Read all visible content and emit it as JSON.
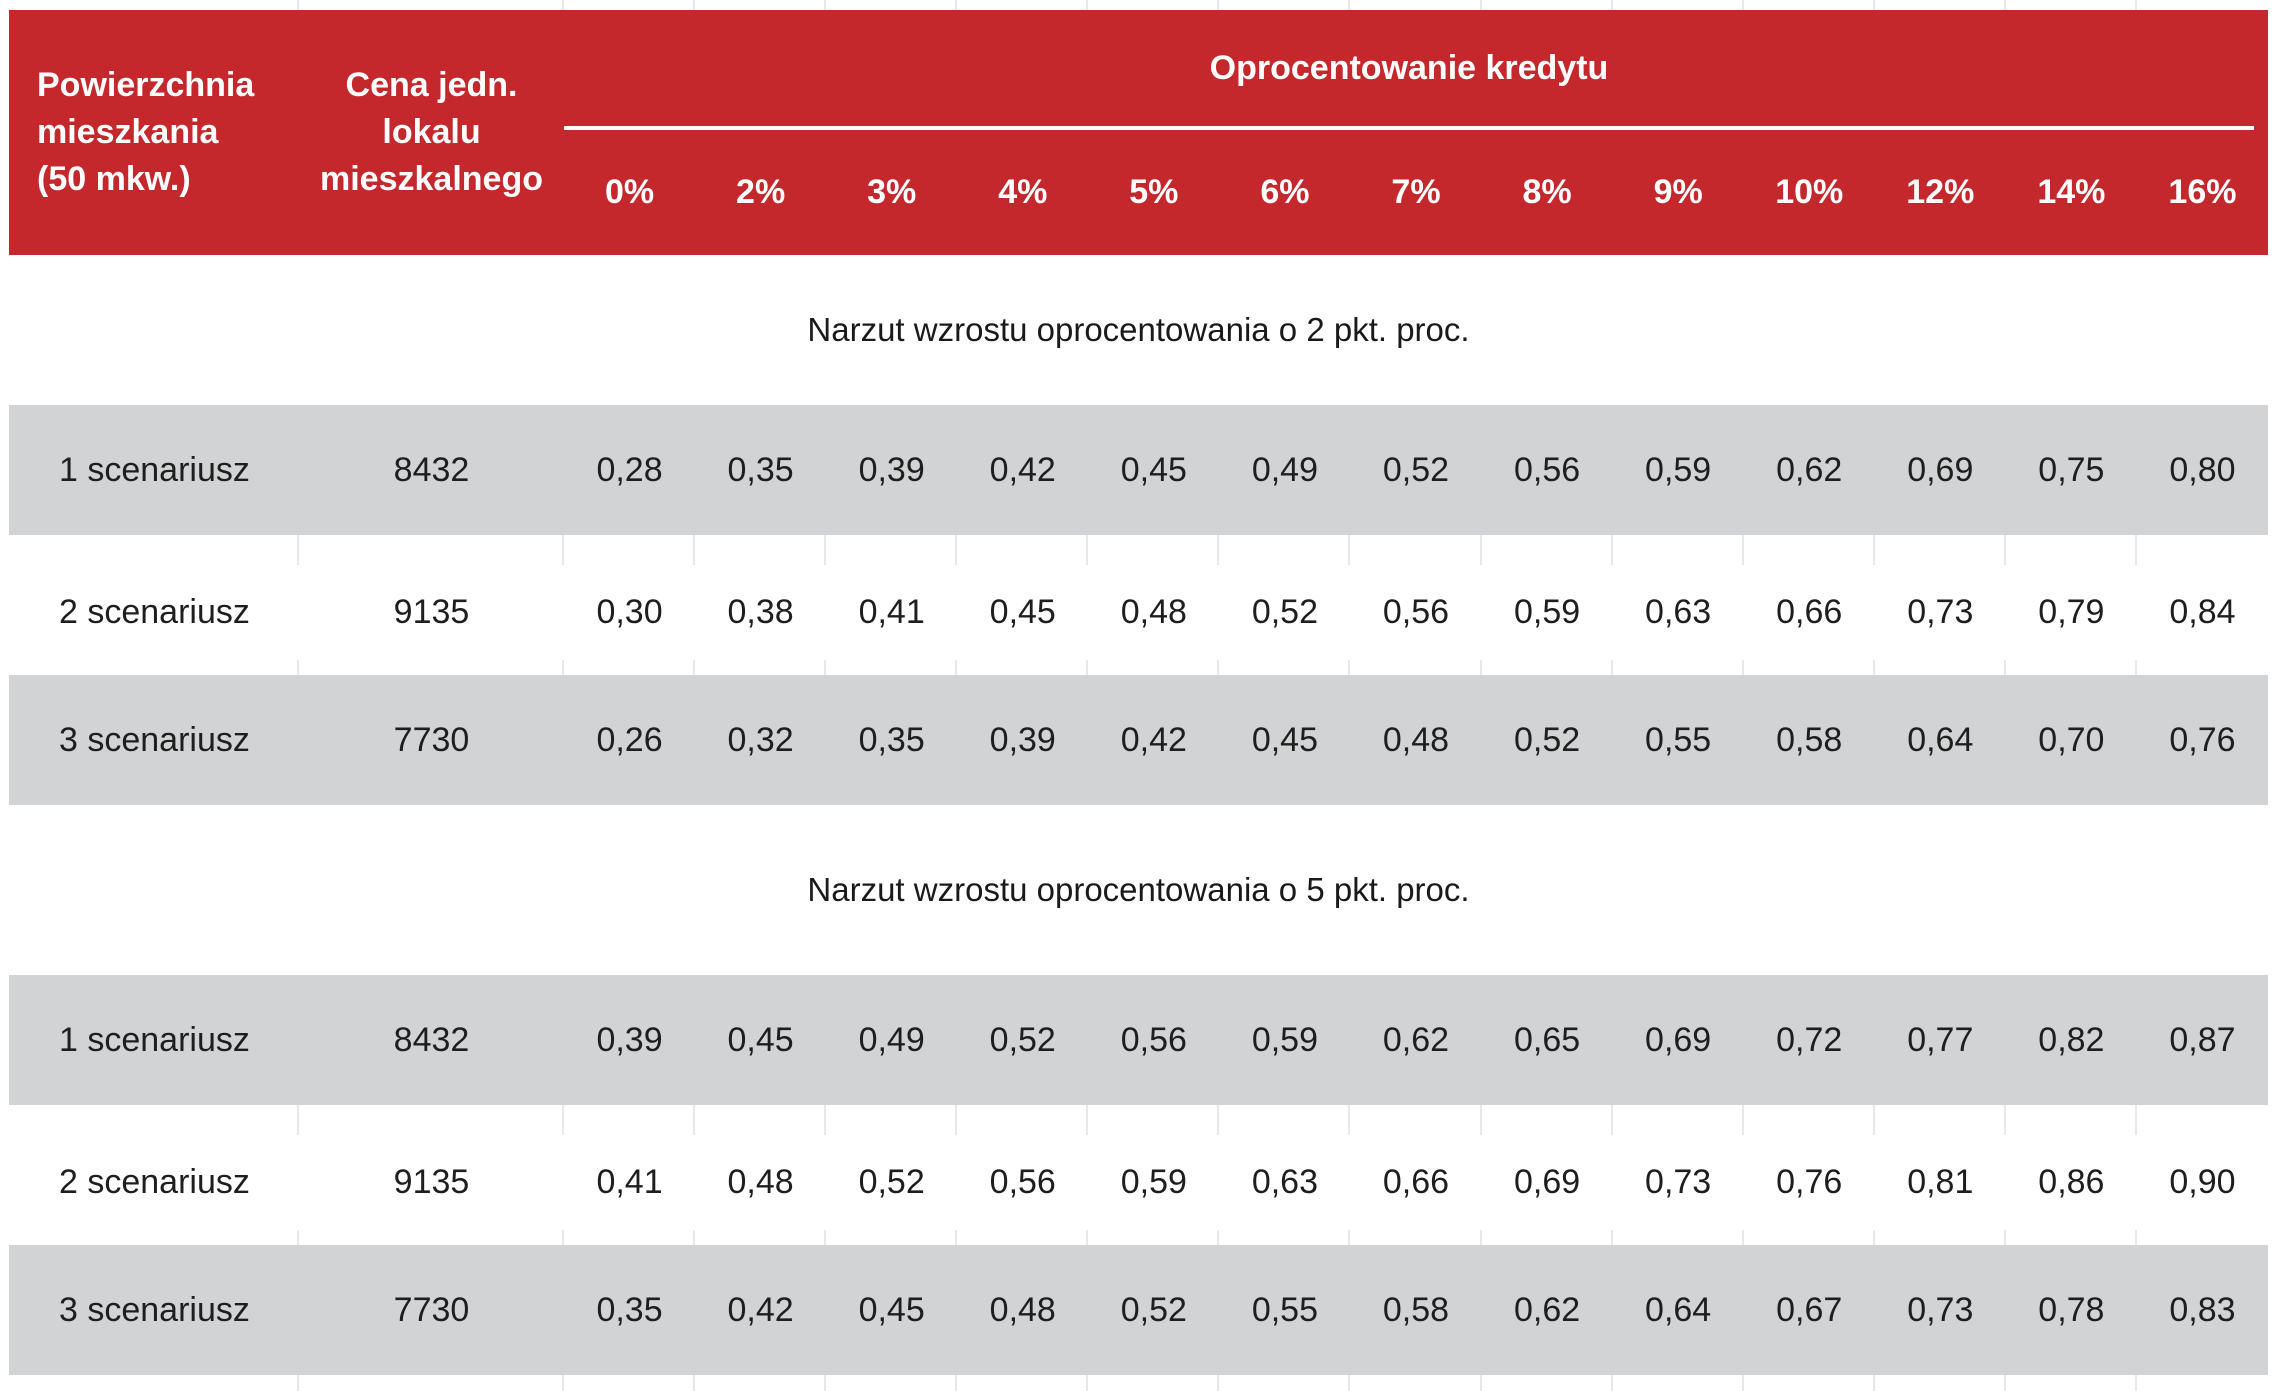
{
  "chart_data": {
    "type": "table",
    "header": {
      "col1_label": "Powierzchnia mieszkania (50 mkw.)",
      "col2_label": "Cena jedn. lokalu mieszkalnego",
      "group_title": "Oprocentowanie kredytu",
      "rate_columns": [
        "0%",
        "2%",
        "3%",
        "4%",
        "5%",
        "6%",
        "7%",
        "8%",
        "9%",
        "10%",
        "12%",
        "14%",
        "16%"
      ]
    },
    "sections": [
      {
        "title": "Narzut wzrostu oprocentowania o 2 pkt. proc.",
        "rows": [
          {
            "label": "1 scenariusz",
            "price": "8432",
            "shaded": true,
            "values": [
              "0,28",
              "0,35",
              "0,39",
              "0,42",
              "0,45",
              "0,49",
              "0,52",
              "0,56",
              "0,59",
              "0,62",
              "0,69",
              "0,75",
              "0,80"
            ]
          },
          {
            "label": "2 scenariusz",
            "price": "9135",
            "shaded": false,
            "values": [
              "0,30",
              "0,38",
              "0,41",
              "0,45",
              "0,48",
              "0,52",
              "0,56",
              "0,59",
              "0,63",
              "0,66",
              "0,73",
              "0,79",
              "0,84"
            ]
          },
          {
            "label": "3 scenariusz",
            "price": "7730",
            "shaded": true,
            "values": [
              "0,26",
              "0,32",
              "0,35",
              "0,39",
              "0,42",
              "0,45",
              "0,48",
              "0,52",
              "0,55",
              "0,58",
              "0,64",
              "0,70",
              "0,76"
            ]
          }
        ]
      },
      {
        "title": "Narzut wzrostu oprocentowania o 5 pkt. proc.",
        "rows": [
          {
            "label": "1 scenariusz",
            "price": "8432",
            "shaded": true,
            "values": [
              "0,39",
              "0,45",
              "0,49",
              "0,52",
              "0,56",
              "0,59",
              "0,62",
              "0,65",
              "0,69",
              "0,72",
              "0,77",
              "0,82",
              "0,87"
            ]
          },
          {
            "label": "2 scenariusz",
            "price": "9135",
            "shaded": false,
            "values": [
              "0,41",
              "0,48",
              "0,52",
              "0,56",
              "0,59",
              "0,63",
              "0,66",
              "0,69",
              "0,73",
              "0,76",
              "0,81",
              "0,86",
              "0,90"
            ]
          },
          {
            "label": "3 scenariusz",
            "price": "7730",
            "shaded": true,
            "values": [
              "0,35",
              "0,42",
              "0,45",
              "0,48",
              "0,52",
              "0,55",
              "0,58",
              "0,62",
              "0,64",
              "0,67",
              "0,73",
              "0,78",
              "0,83"
            ]
          }
        ]
      }
    ]
  },
  "colors": {
    "header_red": "#C4282C",
    "row_gray": "#D1D3D4",
    "gridline": "#EAE8E5",
    "header_text": "#FFFFFF",
    "body_text": "#1E1E1E"
  }
}
